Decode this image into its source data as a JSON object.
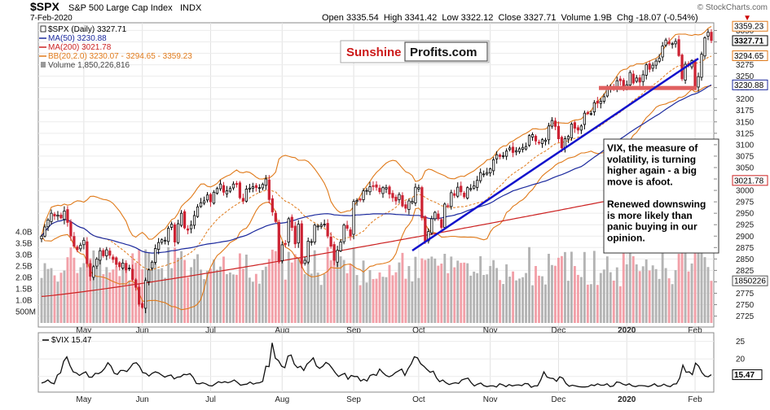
{
  "header": {
    "symbol": "$SPX",
    "name": "S&P 500 Large Cap Index",
    "exchange": "INDX",
    "date": "7-Feb-2020",
    "ohlc": "Open 3335.54  High 3341.42  Low 3322.12  Close 3327.71  Volume 1.9B  Chg -18.07 (-0.54%)",
    "copyright": "© StockCharts.com",
    "chg_arrow": "▼"
  },
  "legend": [
    {
      "text": "$SPX (Daily) 3327.71",
      "color": "#000000"
    },
    {
      "text": "MA(50) 3230.88",
      "color": "#1c2a9e"
    },
    {
      "text": "MA(200) 3021.78",
      "color": "#cc2222"
    },
    {
      "text": "BB(20,2.0) 3230.07 - 3294.65 - 3359.23",
      "color": "#e07a1a"
    },
    {
      "text": "Volume 1,850,226,816",
      "color": "#444444"
    }
  ],
  "watermark": {
    "left": "Sunshine",
    "right": "Profits.com"
  },
  "annotation": {
    "lines": [
      "VIX, the measure of",
      "volatility, is turning",
      "higher again - a big",
      "move is afoot.",
      "",
      "Renewed downswing",
      "is more likely than",
      "panic buying in our",
      "opinion."
    ]
  },
  "price_boxes": {
    "close": "3327.71",
    "bb_upper": "3359.23",
    "bb_mid": "3294.65",
    "ma50": "3230.88",
    "ma200": "3021.78",
    "volume": "1850226",
    "vix": "15.47"
  },
  "vix_legend": "$VIX 15.47",
  "colors": {
    "up": "#000000",
    "down": "#cc2233",
    "ma50": "#1c2a9e",
    "ma200": "#cc2222",
    "bb": "#e07a1a",
    "trend": "#1111cc",
    "support": "#e06060",
    "vol_up": "#b4b4b4",
    "vol_down": "#f2a0a8"
  },
  "chart_data": [
    {
      "type": "candlestick",
      "title": "$SPX S&P 500 Large Cap Index",
      "x_labels": [
        "May",
        "Jun",
        "Jul",
        "Aug",
        "Sep",
        "Oct",
        "Nov",
        "Dec",
        "2020",
        "Feb"
      ],
      "y_ticks": [
        2725,
        2750,
        2775,
        2800,
        2825,
        2850,
        2875,
        2900,
        2925,
        2950,
        2975,
        3000,
        3025,
        3050,
        3075,
        3100,
        3125,
        3150,
        3175,
        3200,
        3225,
        3250,
        3275,
        3300,
        3325,
        3350
      ],
      "ylim": [
        2710,
        3365
      ],
      "volume_ticks": [
        "500M",
        "1.0B",
        "1.5B",
        "2.0B",
        "2.5B",
        "3.0B",
        "3.5B",
        "4.0B"
      ],
      "volume_tick_values": [
        0.5,
        1.0,
        1.5,
        2.0,
        2.5,
        3.0,
        3.5,
        4.0
      ],
      "closes": [
        2900,
        2920,
        2935,
        2950,
        2944,
        2946,
        2940,
        2955,
        2930,
        2900,
        2878,
        2870,
        2880,
        2891,
        2840,
        2812,
        2833,
        2850,
        2868,
        2857,
        2870,
        2858,
        2849,
        2838,
        2833,
        2841,
        2826,
        2830,
        2805,
        2788,
        2751,
        2744,
        2803,
        2826,
        2843,
        2873,
        2886,
        2892,
        2891,
        2917,
        2926,
        2887,
        2927,
        2950,
        2918,
        2913,
        2924,
        2945,
        2964,
        2973,
        2977,
        2990,
        2975,
        2996,
        3004,
        3014,
        2996,
        2999,
        3004,
        3014,
        3013,
        2984,
        2977,
        3003,
        3005,
        3008,
        3006,
        3006,
        3013,
        3025,
        2980,
        2953,
        2932,
        2844,
        2881,
        2883,
        2938,
        2919,
        2883,
        2926,
        2840,
        2847,
        2889,
        2888,
        2924,
        2922,
        2924,
        2926,
        2900,
        2878,
        2847,
        2869,
        2887,
        2924,
        2917,
        2900,
        2976,
        2978,
        2979,
        2999,
        3000,
        3008,
        3009,
        3007,
        2997,
        3006,
        3006,
        2992,
        2984,
        2977,
        2991,
        2966,
        2961,
        2977,
        2976,
        3007,
        3006,
        2940,
        2887,
        2910,
        2938,
        2952,
        2938,
        2919,
        2970,
        2966,
        2995,
        2989,
        3007,
        2997,
        2986,
        3006,
        3004,
        3010,
        3022,
        3039,
        3036,
        3039,
        3047,
        3067,
        3078,
        3074,
        3076,
        3086,
        3093,
        3083,
        3087,
        3091,
        3094,
        3096,
        3120,
        3122,
        3108,
        3104,
        3111,
        3110,
        3141,
        3153,
        3140,
        3113,
        3093,
        3113,
        3118,
        3145,
        3136,
        3132,
        3141,
        3169,
        3168,
        3168,
        3192,
        3191,
        3195,
        3205,
        3221,
        3224,
        3223,
        3240,
        3240,
        3221,
        3231,
        3258,
        3235,
        3246,
        3237,
        3253,
        3275,
        3265,
        3274,
        3283,
        3289,
        3316,
        3329,
        3321,
        3321,
        3326,
        3295,
        3244,
        3276,
        3273,
        3284,
        3226,
        3249,
        3298,
        3334,
        3346,
        3328
      ],
      "ma50_last": 3230.88,
      "ma200_last": 3021.78,
      "bb_last": [
        3230.07,
        3294.65,
        3359.23
      ],
      "volume_last": 1850226816,
      "support_level": 3225
    },
    {
      "type": "line",
      "title": "$VIX 15.47",
      "y_ticks": [
        15,
        20,
        25
      ],
      "ylim": [
        11,
        27
      ],
      "values": [
        13.1,
        13.4,
        14.0,
        13.2,
        12.9,
        15.4,
        16.0,
        19.3,
        20.6,
        18.1,
        16.3,
        16.0,
        15.3,
        15.9,
        16.3,
        14.8,
        14.8,
        15.9,
        15.8,
        16.3,
        17.3,
        18.9,
        17.9,
        15.9,
        15.6,
        16.7,
        16.7,
        16.4,
        17.5,
        18.7,
        18.9,
        17.9,
        16.1,
        15.9,
        15.1,
        15.9,
        16.3,
        16.0,
        15.4,
        14.8,
        15.2,
        15.4,
        14.3,
        14.8,
        14.9,
        15.6,
        15.5,
        15.8,
        14.7,
        13.0,
        12.9,
        13.2,
        12.9,
        12.4,
        12.3,
        12.9,
        13.5,
        13.2,
        13.5,
        13.2,
        13.5,
        14.0,
        13.3,
        12.5,
        12.7,
        12.8,
        13.4,
        12.8,
        13.1,
        13.2,
        13.6,
        17.9,
        17.8,
        24.6,
        20.2,
        19.5,
        17.9,
        17.5,
        20.8,
        21.1,
        18.5,
        17.5,
        17.9,
        16.7,
        18.5,
        19.3,
        20.3,
        18.0,
        17.3,
        17.9,
        19.0,
        18.5,
        17.3,
        16.0,
        15.0,
        15.5,
        15.9,
        14.2,
        15.3,
        15.0,
        15.0,
        13.7,
        14.2,
        13.7,
        15.3,
        15.6,
        15.3,
        17.1,
        16.1,
        15.3,
        14.9,
        15.3,
        16.1,
        16.6,
        17.1,
        15.3,
        17.2,
        18.6,
        20.6,
        20.3,
        18.6,
        17.9,
        17.0,
        16.2,
        16.5,
        14.6,
        13.5,
        14.0,
        13.2,
        12.7,
        13.0,
        13.2,
        13.0,
        14.0,
        14.3,
        14.5,
        13.2,
        12.3,
        12.8,
        13.1,
        12.4,
        12.1,
        12.3,
        12.3,
        12.0,
        12.9,
        12.6,
        12.1,
        12.7,
        12.3,
        12.5,
        12.6,
        12.4,
        13.0,
        12.9,
        11.9,
        12.3,
        12.3,
        14.0,
        16.3,
        14.8,
        14.5,
        14.4,
        13.6,
        14.9,
        14.5,
        13.0,
        12.2,
        12.5,
        12.3,
        12.1,
        12.0,
        12.0,
        12.1,
        12.6,
        12.4,
        12.9,
        12.5,
        12.5,
        12.9,
        12.1,
        12.3,
        13.4,
        13.3,
        12.8,
        12.5,
        12.9,
        12.3,
        12.1,
        12.4,
        12.4,
        12.3,
        12.1,
        12.4,
        12.9,
        12.2,
        12.3,
        12.8,
        12.3,
        12.1,
        12.8,
        12.9,
        14.6,
        18.2,
        16.2,
        16.3,
        15.5,
        18.8,
        17.9,
        16.1,
        15.1,
        14.9,
        15.5
      ]
    }
  ]
}
